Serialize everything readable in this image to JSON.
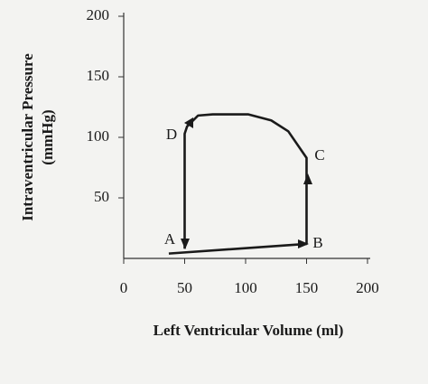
{
  "chart_data": {
    "type": "line",
    "xlabel": "Left Ventricular Volume  (ml)",
    "ylabel": [
      "Intraventricular Pressure",
      "(mmHg)"
    ],
    "x": [
      37,
      150,
      150,
      135,
      121,
      102,
      73,
      61,
      52,
      50,
      50
    ],
    "series": [
      {
        "color": "#1a1a1a",
        "values": [
          4,
          12,
          83,
          105,
          114,
          119,
          119,
          118,
          109,
          103,
          8
        ]
      }
    ],
    "xlim": [
      0,
      200
    ],
    "ylim": [
      0,
      200
    ],
    "xticks": [
      0,
      50,
      100,
      150,
      200
    ],
    "yticks": [
      50,
      100,
      150,
      200
    ],
    "annotations": [
      "A",
      "B",
      "C",
      "D"
    ]
  }
}
